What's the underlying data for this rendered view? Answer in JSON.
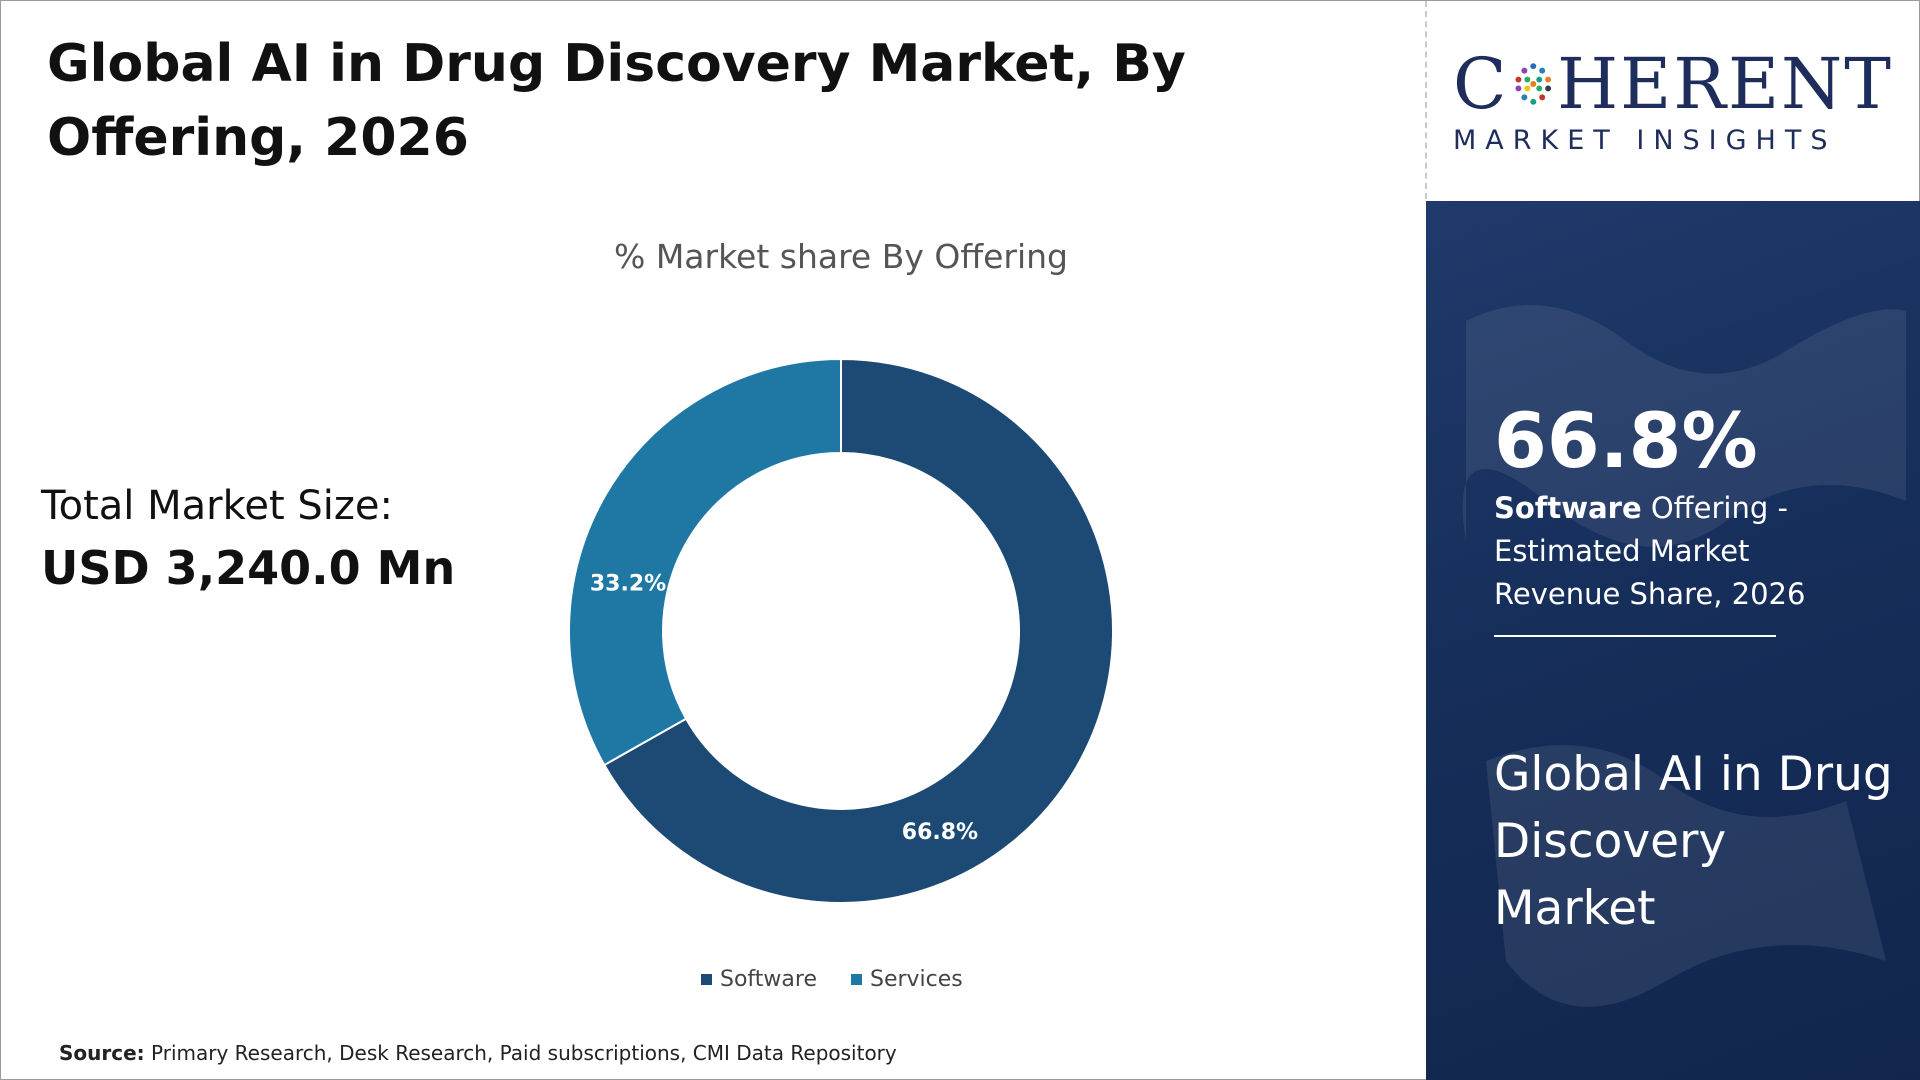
{
  "header": {
    "title": "Global AI in Drug Discovery Market, By Offering, 2026"
  },
  "logo": {
    "wordmark_left": "C",
    "wordmark_right": "HERENT",
    "tagline": "MARKET INSIGHTS"
  },
  "summary": {
    "market_size_label": "Total Market Size:",
    "market_size_value": "USD 3,240.0 Mn"
  },
  "side_panel": {
    "stat_value": "66.8%",
    "stat_bold": "Software",
    "stat_rest": " Offering - Estimated Market Revenue Share, 2026",
    "title": "Global AI in Drug Discovery Market"
  },
  "chart_data": {
    "type": "pie",
    "variant": "donut",
    "title": "% Market share By Offering",
    "categories": [
      "Software",
      "Services"
    ],
    "values": [
      66.8,
      33.2
    ],
    "labels": [
      "66.8%",
      "33.2%"
    ],
    "colors": [
      "#1c4a74",
      "#1f78a4"
    ],
    "legend_position": "bottom"
  },
  "footer": {
    "source_label": "Source:",
    "source_text": " Primary Research, Desk Research, Paid subscriptions, CMI Data Repository"
  },
  "colors": {
    "navy": "#1f2d5c",
    "panel": "#162e5a"
  }
}
